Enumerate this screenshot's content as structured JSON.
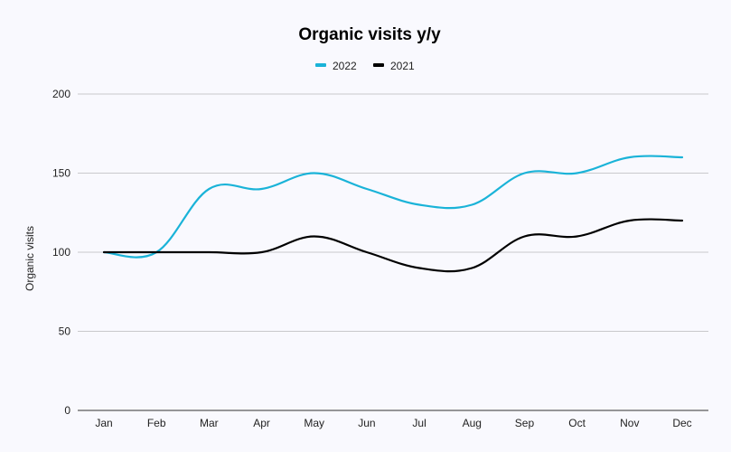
{
  "chart_data": {
    "type": "line",
    "title": "Organic visits y/y",
    "xlabel": "",
    "ylabel": "Organic visits",
    "categories": [
      "Jan",
      "Feb",
      "Mar",
      "Apr",
      "May",
      "Jun",
      "Jul",
      "Aug",
      "Sep",
      "Oct",
      "Nov",
      "Dec"
    ],
    "ylim": [
      0,
      200
    ],
    "yticks": [
      0,
      50,
      100,
      150,
      200
    ],
    "grid": true,
    "legend_position": "top",
    "series": [
      {
        "name": "2022",
        "color": "#1ab3d8",
        "values": [
          100,
          100,
          140,
          140,
          150,
          140,
          130,
          130,
          150,
          150,
          160,
          160
        ]
      },
      {
        "name": "2021",
        "color": "#000000",
        "values": [
          100,
          100,
          100,
          100,
          110,
          100,
          90,
          90,
          110,
          110,
          120,
          120
        ]
      }
    ]
  }
}
